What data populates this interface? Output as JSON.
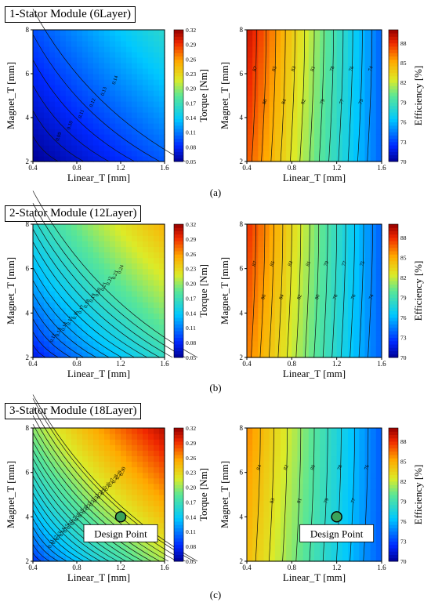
{
  "colors": {
    "torque_low": "#1a1aa6",
    "torque_high": "#b30000",
    "eff_low": "#2a2ab8",
    "eff_high": "#a00000",
    "design_point": "#3aa35a"
  },
  "sections": [
    {
      "title": "1-Stator Module (6Layer)",
      "label": "(a)"
    },
    {
      "title": "2-Stator Module (12Layer)",
      "label": "(b)"
    },
    {
      "title": "3-Stator Module (18Layer)",
      "label": "(c)"
    }
  ],
  "chart_data": [
    {
      "type": "heatmap",
      "panel": "a-left",
      "xlabel": "Linear_T [mm]",
      "ylabel": "Magnet_T [mm]",
      "xlim": [
        0.4,
        1.6
      ],
      "ylim": [
        2,
        8
      ],
      "xticks": [
        "0.4",
        "0.8",
        "1.2",
        "1.6"
      ],
      "yticks": [
        "2",
        "4",
        "6",
        "8"
      ],
      "colorbar_label": "Torque [Nm]",
      "colorbar_range": [
        0.05,
        0.32
      ],
      "colorbar_ticks": [
        "0.32",
        "0.29",
        "0.26",
        "0.23",
        "0.20",
        "0.17",
        "0.14",
        "0.11",
        "0.08",
        "0.05"
      ],
      "surface": {
        "min": 0.05,
        "max": 0.16,
        "axis": "both",
        "power": 1.0
      },
      "contour_labels": [
        "0.09",
        "0.10",
        "0.11",
        "0.12",
        "0.13",
        "0.14"
      ]
    },
    {
      "type": "heatmap",
      "panel": "a-right",
      "xlabel": "Linear_T [mm]",
      "ylabel": "Magnet_T [mm]",
      "xlim": [
        0.4,
        1.6
      ],
      "ylim": [
        2,
        8
      ],
      "xticks": [
        "0.4",
        "0.8",
        "1.2",
        "1.6"
      ],
      "yticks": [
        "2",
        "4",
        "6",
        "8"
      ],
      "colorbar_label": "Efficiency [%]",
      "colorbar_range": [
        70,
        90
      ],
      "colorbar_ticks": [
        "88",
        "85",
        "82",
        "79",
        "76",
        "73",
        "70"
      ],
      "surface": {
        "min": 73,
        "max": 89,
        "axis": "x",
        "power": 1.0
      },
      "contour_labels": [
        "87",
        "86",
        "85",
        "84",
        "83",
        "82",
        "81",
        "79",
        "78",
        "77",
        "76",
        "75",
        "74"
      ]
    },
    {
      "type": "heatmap",
      "panel": "b-left",
      "xlabel": "Linear_T [mm]",
      "ylabel": "Magnet_T [mm]",
      "xlim": [
        0.4,
        1.6
      ],
      "ylim": [
        2,
        8
      ],
      "xticks": [
        "0.4",
        "0.8",
        "1.2",
        "1.6"
      ],
      "yticks": [
        "2",
        "4",
        "6",
        "8"
      ],
      "colorbar_label": "Torque [Nm]",
      "colorbar_range": [
        0.05,
        0.32
      ],
      "colorbar_ticks": [
        "0.32",
        "0.29",
        "0.26",
        "0.23",
        "0.20",
        "0.17",
        "0.14",
        "0.11",
        "0.08",
        "0.05"
      ],
      "surface": {
        "min": 0.07,
        "max": 0.25,
        "axis": "both",
        "power": 0.8
      },
      "contour_labels": [
        "0.12",
        "0.13",
        "0.14",
        "0.15",
        "0.16",
        "0.17",
        "0.18",
        "0.19",
        "0.20",
        "0.21",
        "0.22",
        "0.23",
        "0.24"
      ]
    },
    {
      "type": "heatmap",
      "panel": "b-right",
      "xlabel": "Linear_T [mm]",
      "ylabel": "Magnet_T [mm]",
      "xlim": [
        0.4,
        1.6
      ],
      "ylim": [
        2,
        8
      ],
      "xticks": [
        "0.4",
        "0.8",
        "1.2",
        "1.6"
      ],
      "yticks": [
        "2",
        "4",
        "6",
        "8"
      ],
      "colorbar_label": "Efficiency [%]",
      "colorbar_range": [
        70,
        90
      ],
      "colorbar_ticks": [
        "88",
        "85",
        "82",
        "79",
        "76",
        "73",
        "70"
      ],
      "surface": {
        "min": 73,
        "max": 88,
        "axis": "x",
        "power": 1.0
      },
      "contour_labels": [
        "87",
        "86",
        "85",
        "84",
        "83",
        "82",
        "81",
        "80",
        "79",
        "78",
        "77",
        "76",
        "75",
        "74"
      ]
    },
    {
      "type": "heatmap",
      "panel": "c-left",
      "xlabel": "Linear_T [mm]",
      "ylabel": "Magnet_T [mm]",
      "xlim": [
        0.4,
        1.6
      ],
      "ylim": [
        2,
        8
      ],
      "xticks": [
        "0.4",
        "0.8",
        "1.2",
        "1.6"
      ],
      "yticks": [
        "2",
        "4",
        "6",
        "8"
      ],
      "colorbar_label": "Torque [Nm]",
      "colorbar_range": [
        0.05,
        0.32
      ],
      "colorbar_ticks": [
        "0.32",
        "0.29",
        "0.26",
        "0.23",
        "0.20",
        "0.17",
        "0.14",
        "0.11",
        "0.08",
        "0.05"
      ],
      "surface": {
        "min": 0.08,
        "max": 0.31,
        "axis": "both",
        "power": 0.75
      },
      "contour_labels": [
        "0.11",
        "0.12",
        "0.13",
        "0.14",
        "0.15",
        "0.16",
        "0.17",
        "0.18",
        "0.19",
        "0.20",
        "0.21",
        "0.22",
        "0.23",
        "0.24",
        "0.25",
        "0.26",
        "0.27",
        "0.28",
        "0.29",
        "0.30"
      ],
      "design_point": {
        "x": 1.2,
        "y": 4,
        "label": "Design Point"
      }
    },
    {
      "type": "heatmap",
      "panel": "c-right",
      "xlabel": "Linear_T [mm]",
      "ylabel": "Magnet_T [mm]",
      "xlim": [
        0.4,
        1.6
      ],
      "ylim": [
        2,
        8
      ],
      "xticks": [
        "0.4",
        "0.8",
        "1.2",
        "1.6"
      ],
      "yticks": [
        "2",
        "4",
        "6",
        "8"
      ],
      "colorbar_label": "Efficiency [%]",
      "colorbar_range": [
        70,
        90
      ],
      "colorbar_ticks": [
        "88",
        "85",
        "82",
        "79",
        "76",
        "73",
        "70"
      ],
      "surface": {
        "min": 73,
        "max": 86,
        "axis": "x",
        "power": 1.0
      },
      "contour_labels": [
        "84",
        "83",
        "82",
        "81",
        "80",
        "79",
        "78",
        "77",
        "76"
      ],
      "design_point": {
        "x": 1.2,
        "y": 4,
        "label": "Design Point"
      }
    }
  ]
}
